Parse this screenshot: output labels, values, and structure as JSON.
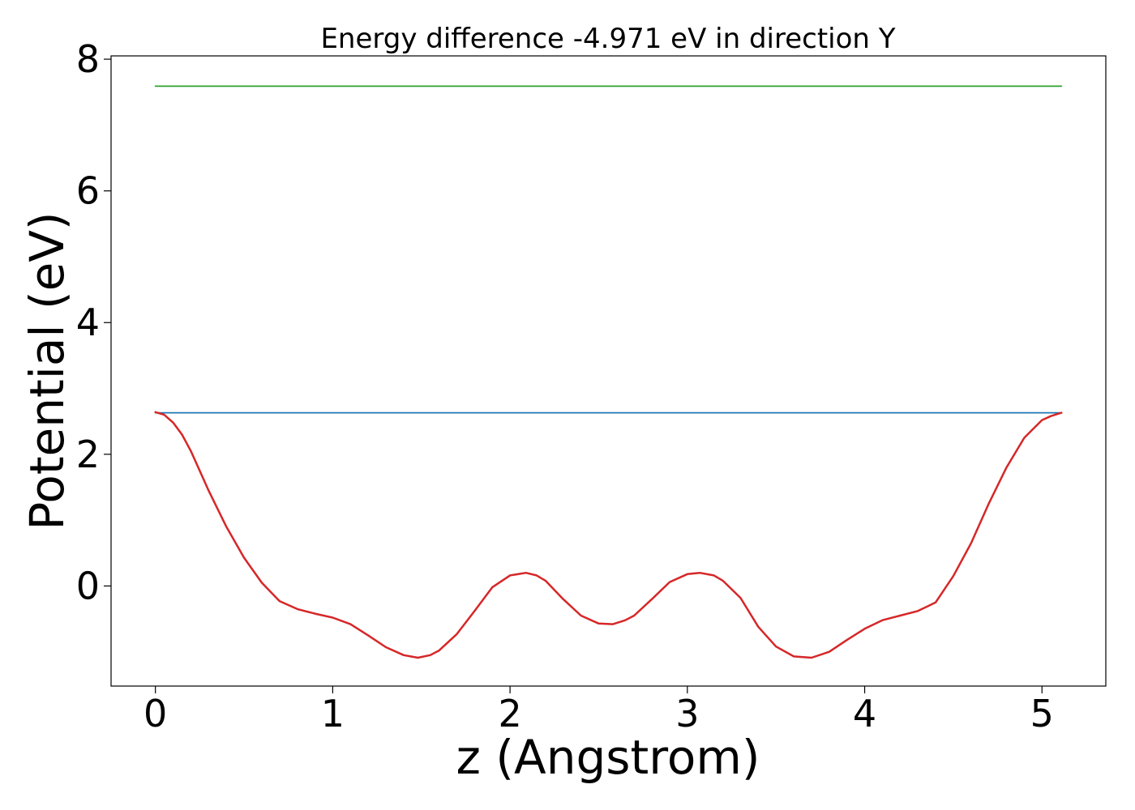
{
  "chart_data": {
    "type": "line",
    "title": "Energy difference -4.971 eV in direction Y",
    "xlabel": "z (Angstrom)",
    "ylabel": "Potential (eV)",
    "xlim": [
      -0.25,
      5.36
    ],
    "ylim": [
      -1.52,
      8.05
    ],
    "xticks": [
      "0",
      "1",
      "2",
      "3",
      "4",
      "5"
    ],
    "yticks": [
      "0",
      "2",
      "4",
      "6",
      "8"
    ],
    "grid": false,
    "series": [
      {
        "color": "#2ca02c",
        "x": [
          0,
          5.11
        ],
        "y": [
          7.59,
          7.59
        ]
      },
      {
        "color": "#1f77b4",
        "x": [
          0,
          5.11
        ],
        "y": [
          2.63,
          2.63
        ]
      },
      {
        "color": "#d62728",
        "x": [
          0.0,
          0.05,
          0.1,
          0.15,
          0.2,
          0.3,
          0.4,
          0.5,
          0.6,
          0.7,
          0.8,
          0.9,
          1.0,
          1.1,
          1.2,
          1.3,
          1.4,
          1.48,
          1.55,
          1.6,
          1.7,
          1.8,
          1.9,
          2.0,
          2.09,
          2.15,
          2.2,
          2.3,
          2.4,
          2.5,
          2.58,
          2.65,
          2.7,
          2.8,
          2.9,
          3.0,
          3.07,
          3.15,
          3.2,
          3.3,
          3.4,
          3.5,
          3.6,
          3.7,
          3.8,
          3.9,
          4.0,
          4.1,
          4.2,
          4.3,
          4.4,
          4.5,
          4.6,
          4.7,
          4.8,
          4.9,
          5.0,
          5.05,
          5.11
        ],
        "y": [
          2.64,
          2.6,
          2.48,
          2.3,
          2.05,
          1.45,
          0.9,
          0.43,
          0.05,
          -0.23,
          -0.35,
          -0.42,
          -0.48,
          -0.58,
          -0.75,
          -0.93,
          -1.05,
          -1.09,
          -1.05,
          -0.98,
          -0.73,
          -0.38,
          -0.02,
          0.16,
          0.2,
          0.16,
          0.08,
          -0.2,
          -0.45,
          -0.57,
          -0.58,
          -0.52,
          -0.45,
          -0.2,
          0.06,
          0.18,
          0.2,
          0.16,
          0.08,
          -0.18,
          -0.62,
          -0.92,
          -1.07,
          -1.09,
          -1.0,
          -0.82,
          -0.65,
          -0.52,
          -0.45,
          -0.38,
          -0.25,
          0.15,
          0.65,
          1.25,
          1.8,
          2.25,
          2.52,
          2.58,
          2.63
        ]
      }
    ]
  }
}
